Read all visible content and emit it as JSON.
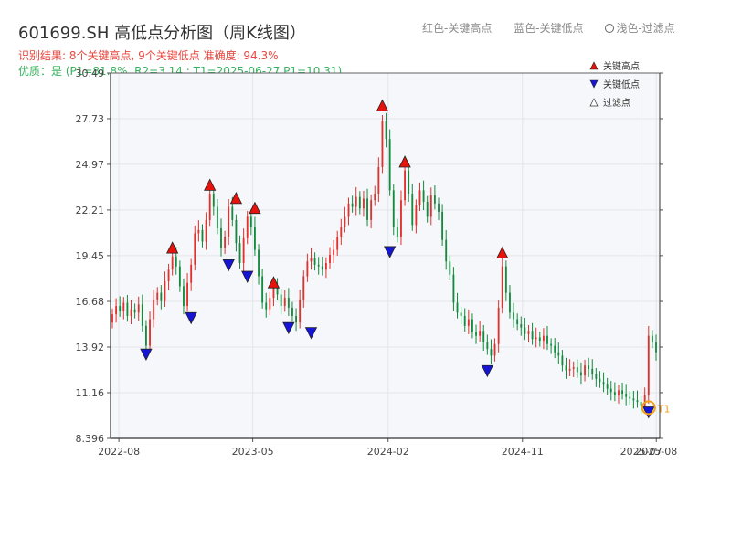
{
  "header": {
    "title": "601699.SH 高低点分析图（周K线图）",
    "result_line": "识别结果: 8个关键高点, 9个关键低点  准确度: 94.3%",
    "quality_line": "优质：是  (P1=81.8%, R2=3.14 ; T1=2025-06-27 P1=10.31)"
  },
  "top_legend": {
    "red_item": "红色-关键高点",
    "blue_item": "蓝色-关键低点",
    "light_item": "浅色-过滤点"
  },
  "colors": {
    "up": "#e0312d",
    "down": "#138a3d",
    "high_marker": "#e8120c",
    "low_marker": "#1515d8",
    "t1_ring": "#f2a01a",
    "grid": "#e3e6ea",
    "plot_bg": "#f6f7fa"
  },
  "chart_data": {
    "type": "candlestick",
    "title": "601699.SH 高低点分析图（周K线图）",
    "ylim": [
      8.396,
      30.49
    ],
    "y_ticks": [
      "30.49",
      "27.73",
      "24.97",
      "22.21",
      "19.45",
      "16.68",
      "13.92",
      "11.16",
      "8.396"
    ],
    "x_range": [
      "2022-07-15",
      "2025-08-08"
    ],
    "x_ticks": [
      {
        "date": "2022-08-01",
        "label": "2022-08"
      },
      {
        "date": "2023-05-01",
        "label": "2023-05"
      },
      {
        "date": "2024-02-01",
        "label": "2024-02"
      },
      {
        "date": "2024-11-01",
        "label": "2024-11"
      },
      {
        "date": "2025-07-01",
        "label": "2025-07"
      },
      {
        "date": "2025-08-01",
        "label": "2025-08"
      }
    ],
    "legend": {
      "placement": "top-right",
      "entries": [
        "关键高点",
        "关键低点",
        "过滤点"
      ]
    },
    "closes": [
      15.9,
      16.4,
      16.1,
      16.6,
      15.8,
      16.2,
      16.0,
      16.5,
      15.2,
      14.0,
      15.6,
      16.8,
      17.2,
      16.7,
      17.9,
      18.6,
      19.4,
      18.8,
      17.6,
      16.4,
      17.8,
      18.9,
      20.8,
      21.0,
      20.3,
      21.6,
      23.2,
      22.4,
      21.1,
      19.9,
      20.6,
      22.4,
      21.6,
      20.2,
      19.0,
      20.5,
      21.8,
      21.2,
      19.8,
      18.2,
      16.6,
      16.2,
      16.9,
      17.5,
      17.1,
      16.4,
      16.9,
      16.3,
      15.8,
      15.4,
      16.8,
      18.2,
      19.1,
      19.3,
      18.9,
      18.8,
      18.6,
      19.0,
      19.5,
      19.8,
      20.6,
      21.2,
      21.8,
      22.6,
      22.4,
      23.0,
      22.3,
      22.9,
      21.6,
      22.8,
      23.2,
      24.8,
      27.6,
      26.5,
      23.4,
      21.2,
      20.6,
      22.8,
      24.6,
      23.2,
      21.3,
      22.5,
      23.4,
      22.7,
      21.8,
      23.1,
      22.6,
      22.1,
      20.4,
      19.1,
      18.3,
      16.6,
      16.0,
      15.8,
      15.2,
      15.6,
      14.8,
      14.6,
      14.9,
      14.2,
      13.8,
      13.4,
      14.1,
      16.3,
      18.8,
      17.2,
      16.0,
      15.6,
      15.3,
      15.1,
      14.7,
      14.9,
      14.4,
      14.5,
      14.3,
      14.6,
      14.1,
      14.0,
      13.6,
      13.4,
      12.8,
      12.5,
      12.6,
      12.7,
      12.4,
      12.2,
      12.8,
      12.6,
      12.3,
      12.0,
      11.8,
      11.7,
      11.4,
      11.2,
      11.0,
      11.3,
      11.1,
      10.9,
      10.8,
      10.7,
      10.6,
      10.4,
      11.0,
      14.6,
      14.2,
      13.6
    ],
    "key_highs": [
      {
        "index": 16,
        "value": 19.6
      },
      {
        "index": 26,
        "value": 23.4
      },
      {
        "index": 33,
        "value": 22.6
      },
      {
        "index": 38,
        "value": 22.0
      },
      {
        "index": 43,
        "value": 17.5
      },
      {
        "index": 72,
        "value": 28.2
      },
      {
        "index": 78,
        "value": 24.8
      },
      {
        "index": 104,
        "value": 19.3
      }
    ],
    "key_lows": [
      {
        "index": 9,
        "value": 13.8
      },
      {
        "index": 21,
        "value": 16.0
      },
      {
        "index": 31,
        "value": 19.2
      },
      {
        "index": 36,
        "value": 18.5
      },
      {
        "index": 47,
        "value": 15.4
      },
      {
        "index": 53,
        "value": 15.1
      },
      {
        "index": 74,
        "value": 20.0
      },
      {
        "index": 100,
        "value": 12.8
      },
      {
        "index": 143,
        "value": 10.3
      }
    ],
    "t1_point": {
      "index": 143,
      "value": 10.31,
      "label": "T1"
    }
  }
}
